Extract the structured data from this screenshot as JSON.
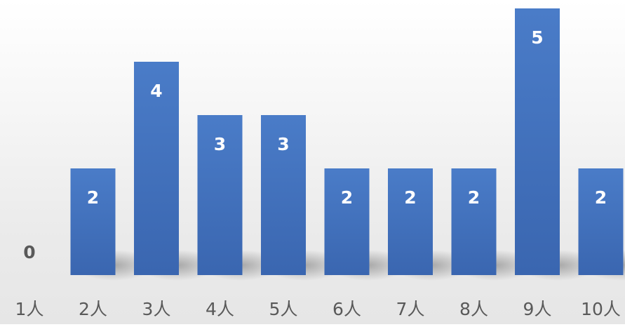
{
  "chart_data": {
    "type": "bar",
    "categories": [
      "1人",
      "2人",
      "3人",
      "4人",
      "5人",
      "6人",
      "7人",
      "8人",
      "9人",
      "10人"
    ],
    "values": [
      0,
      2,
      4,
      3,
      3,
      2,
      2,
      2,
      5,
      2
    ],
    "data_labels": [
      "0",
      "2",
      "4",
      "3",
      "3",
      "2",
      "2",
      "2",
      "5",
      "2"
    ],
    "title": "",
    "xlabel": "",
    "ylabel": "",
    "ylim": [
      0,
      5
    ],
    "grid": false,
    "legend": "none",
    "bar_color": "#4472c4",
    "bar_color_dark": "#3a63ad",
    "label_color": "#ffffff",
    "category_label_color": "#595959"
  }
}
